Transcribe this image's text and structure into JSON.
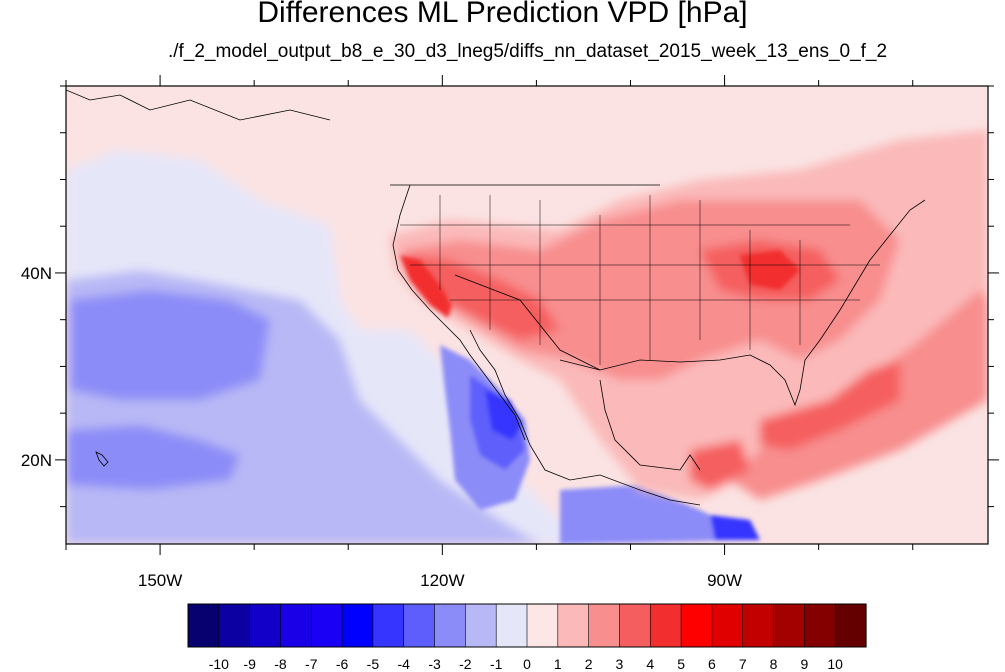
{
  "title": "Differences ML Prediction VPD [hPa]",
  "subtitle": "./f_2_model_output_b8_e_30_d3_lneg5/diffs_nn_dataset_2015_week_13_ens_0_f_2",
  "map": {
    "lon_range": [
      -160,
      -62
    ],
    "lat_range": [
      11,
      60
    ],
    "lon_ticks": [
      {
        "lon": -150,
        "label": "150W"
      },
      {
        "lon": -120,
        "label": "120W"
      },
      {
        "lon": -90,
        "label": "90W"
      }
    ],
    "lat_ticks": [
      {
        "lat": 40,
        "label": "40N"
      },
      {
        "lat": 20,
        "label": "20N"
      }
    ],
    "background_color": "#fbe3e3"
  },
  "colorbar": {
    "labels": [
      "-10",
      "-9",
      "-8",
      "-7",
      "-6",
      "-5",
      "-4",
      "-3",
      "-2",
      "-1",
      "0",
      "1",
      "2",
      "3",
      "4",
      "5",
      "6",
      "7",
      "8",
      "9",
      "10"
    ],
    "colors": [
      "#07006f",
      "#0c00a3",
      "#1200c9",
      "#1a00e6",
      "#1b00f6",
      "#0000ff",
      "#3535ff",
      "#5e5efc",
      "#8c8cf8",
      "#b8b8f6",
      "#e6e6f9",
      "#fde6e6",
      "#fbb9b9",
      "#f88e8e",
      "#f55e5e",
      "#f22e2e",
      "#ff0000",
      "#e00000",
      "#c20000",
      "#a30000",
      "#840000",
      "#640000"
    ]
  }
}
